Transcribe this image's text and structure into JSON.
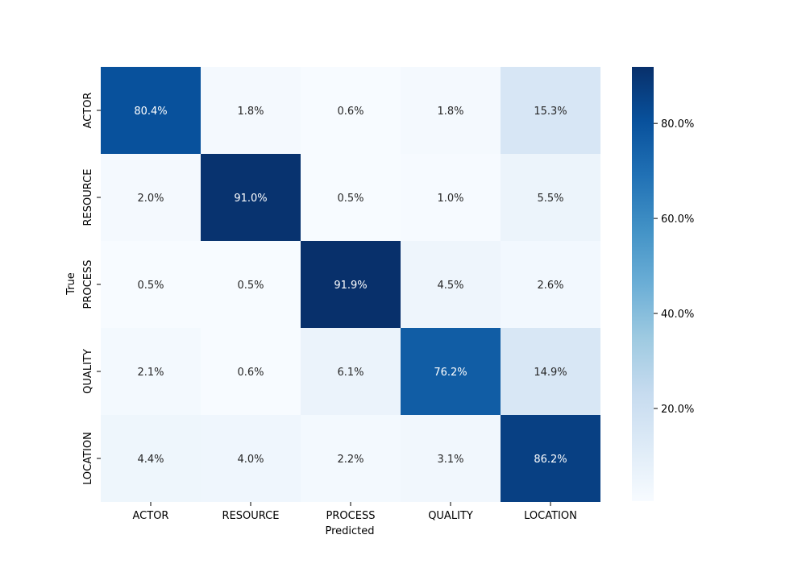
{
  "chart_data": {
    "type": "heatmap",
    "title": "",
    "xlabel": "Predicted",
    "ylabel": "True",
    "x_categories": [
      "ACTOR",
      "RESOURCE",
      "PROCESS",
      "QUALITY",
      "LOCATION"
    ],
    "y_categories": [
      "ACTOR",
      "RESOURCE",
      "PROCESS",
      "QUALITY",
      "LOCATION"
    ],
    "values": [
      [
        80.4,
        1.8,
        0.6,
        1.8,
        15.3
      ],
      [
        2.0,
        91.0,
        0.5,
        1.0,
        5.5
      ],
      [
        0.5,
        0.5,
        91.9,
        4.5,
        2.6
      ],
      [
        2.1,
        0.6,
        6.1,
        76.2,
        14.9
      ],
      [
        4.4,
        4.0,
        2.2,
        3.1,
        86.2
      ]
    ],
    "value_format": "percent_1dp",
    "colormap": "Blues",
    "colorbar": {
      "min": 0.5,
      "max": 91.9,
      "ticks": [
        20,
        40,
        60,
        80
      ],
      "tick_labels": [
        "20.0%",
        "40.0%",
        "60.0%",
        "80.0%"
      ]
    },
    "grid": false,
    "legend": "colorbar-right"
  }
}
